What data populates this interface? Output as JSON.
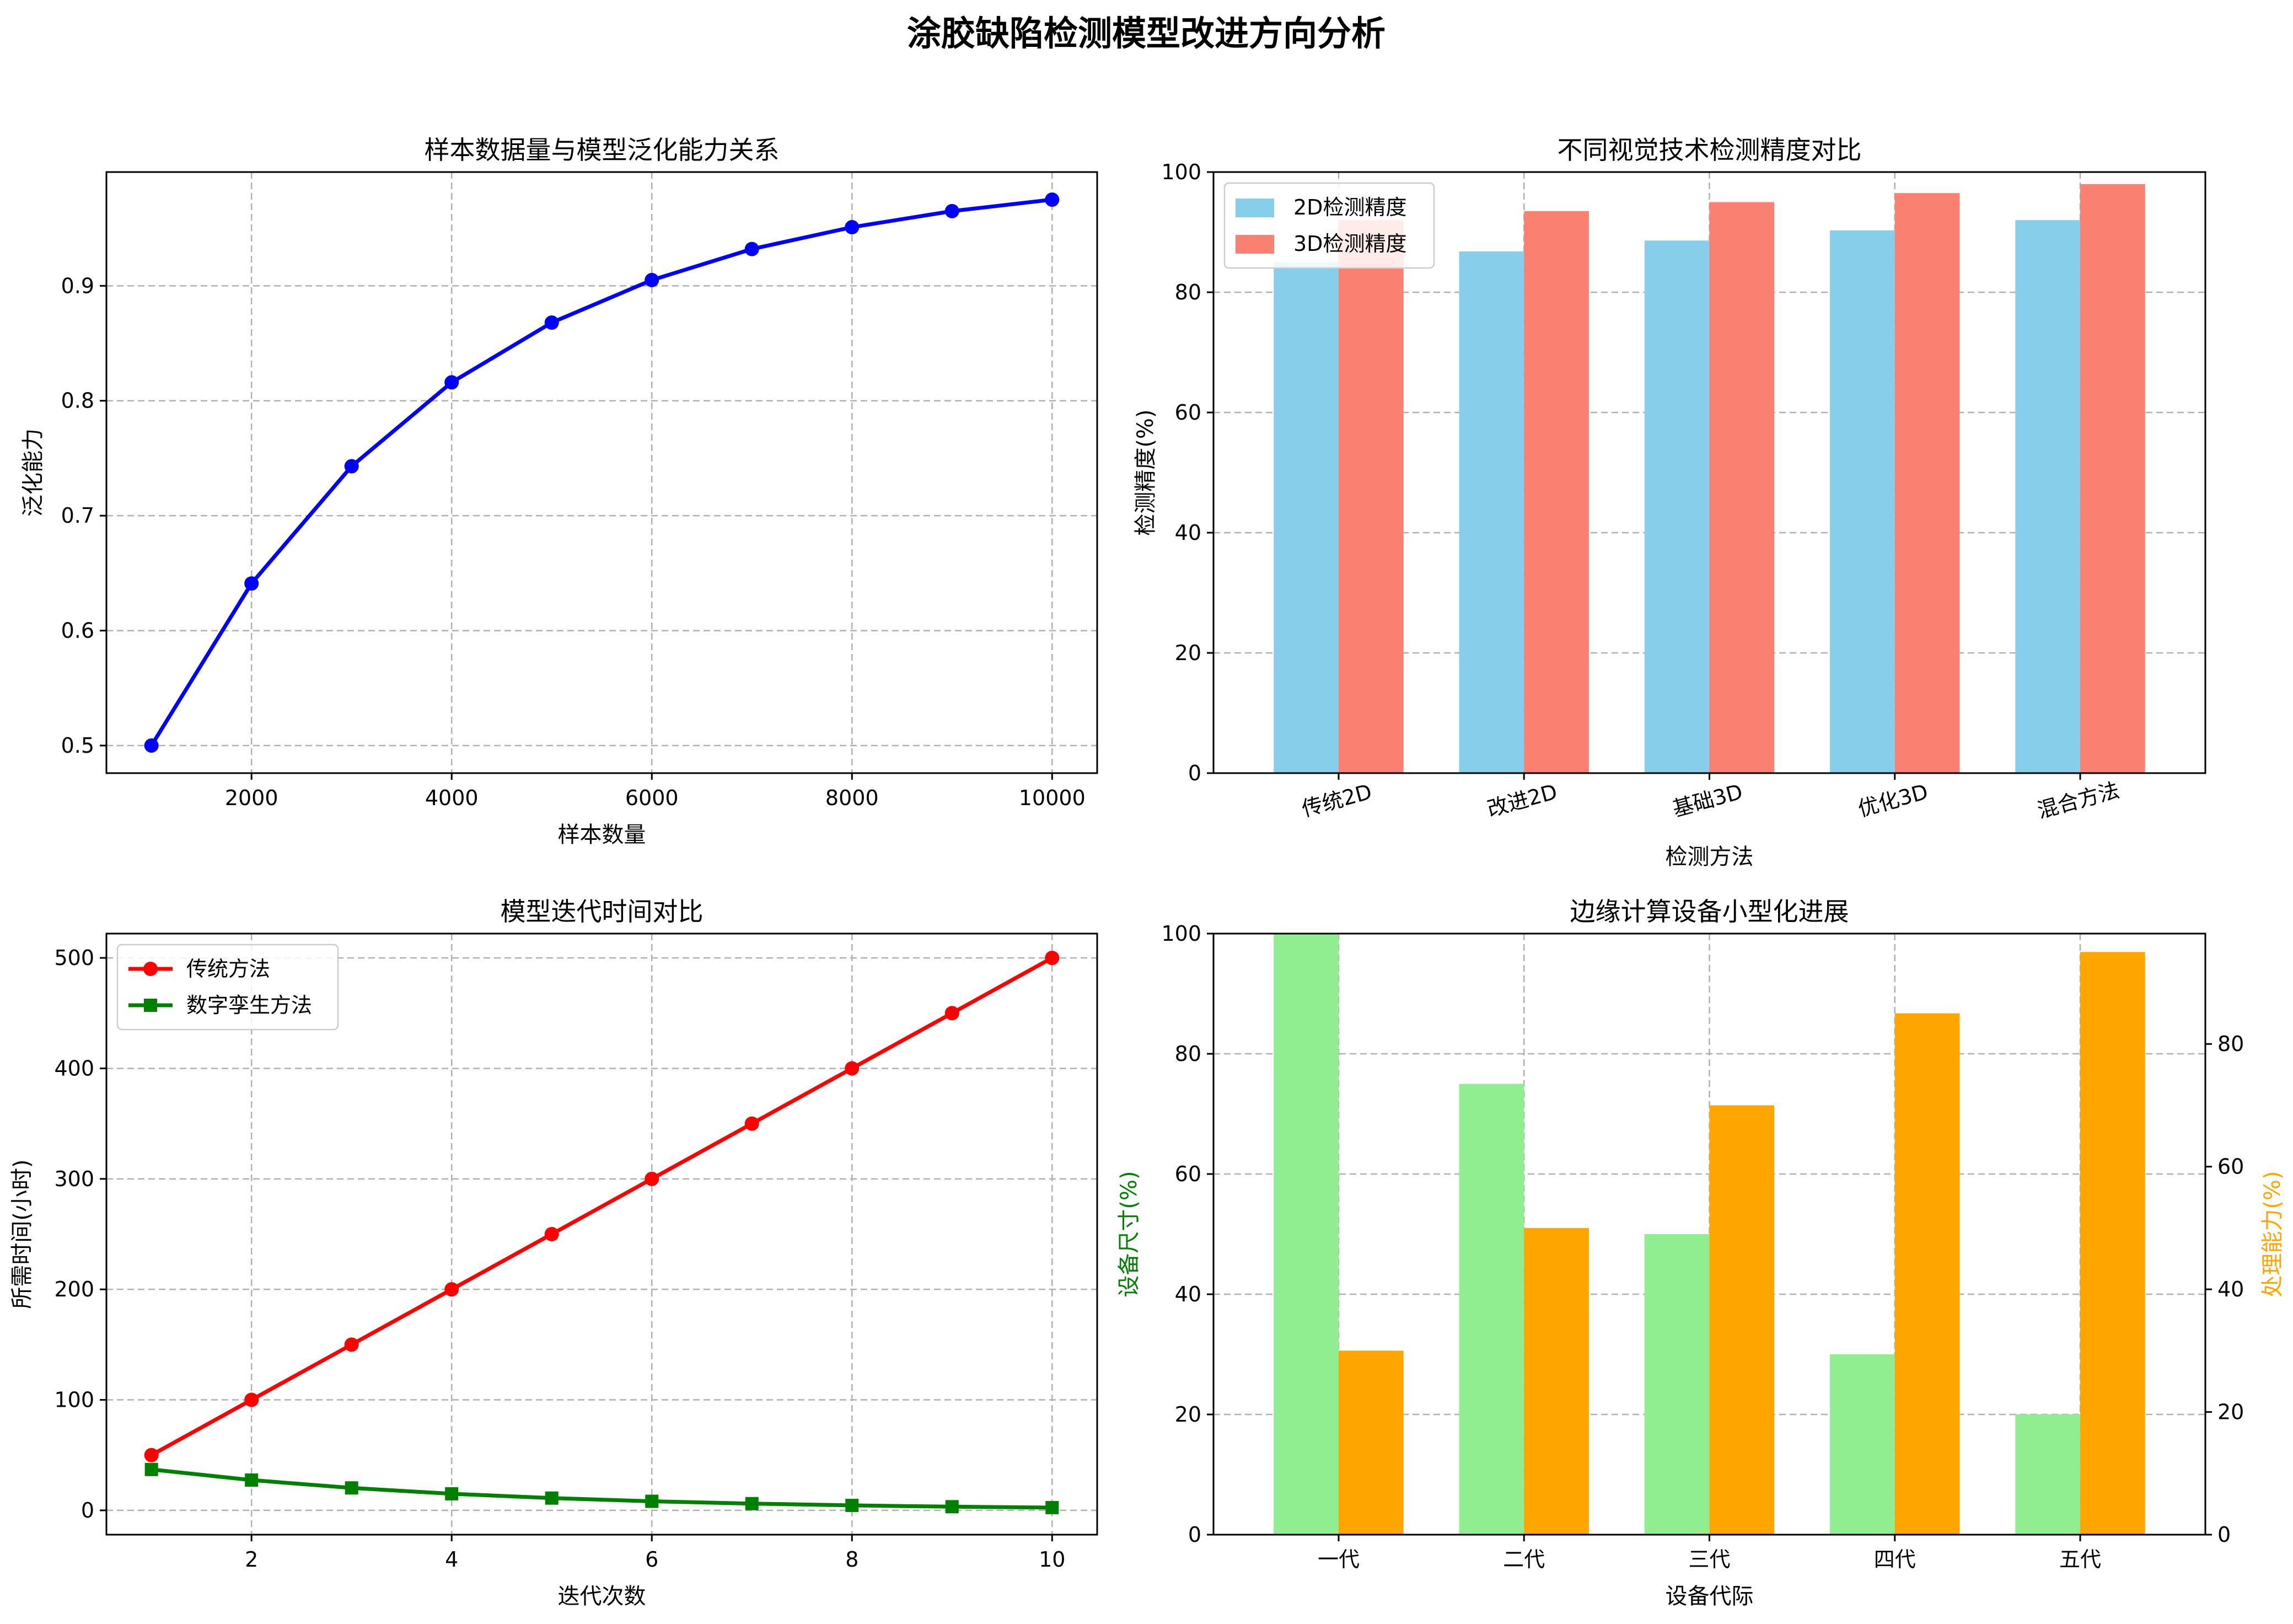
{
  "suptitle": "涂胶缺陷检测模型改进方向分析",
  "chart_data": [
    {
      "type": "line",
      "title": "样本数据量与模型泛化能力关系",
      "xlabel": "样本数量",
      "ylabel": "泛化能力",
      "grid": true,
      "xlim": [
        550,
        10450
      ],
      "ylim": [
        0.476,
        0.999
      ],
      "xticks": [
        2000,
        4000,
        6000,
        8000,
        10000
      ],
      "yticks": [
        0.5,
        0.6,
        0.7,
        0.8,
        0.9
      ],
      "x": [
        1000,
        2000,
        3000,
        4000,
        5000,
        6000,
        7000,
        8000,
        9000,
        10000
      ],
      "series": [
        {
          "color": "#0000ff",
          "marker": "circle",
          "values": [
            0.5,
            0.641,
            0.743,
            0.816,
            0.868,
            0.905,
            0.932,
            0.951,
            0.965,
            0.975
          ]
        }
      ]
    },
    {
      "type": "bar",
      "title": "不同视觉技术检测精度对比",
      "xlabel": "检测方法",
      "ylabel": "检测精度(%)",
      "grid": true,
      "ylim": [
        0,
        100
      ],
      "yticks": [
        0,
        20,
        40,
        60,
        80,
        100
      ],
      "categories": [
        "传统2D",
        "改进2D",
        "基础3D",
        "优化3D",
        "混合方法"
      ],
      "tick_rotation": -15,
      "legend": "top-left",
      "series": [
        {
          "name": "2D检测精度",
          "color": "#87ceeb",
          "values": [
            85,
            86.8,
            88.6,
            90.3,
            92
          ]
        },
        {
          "name": "3D检测精度",
          "color": "#fa8072",
          "values": [
            92,
            93.5,
            95,
            96.5,
            98
          ]
        }
      ]
    },
    {
      "type": "line",
      "title": "模型迭代时间对比",
      "xlabel": "迭代次数",
      "ylabel": "所需时间(小时)",
      "grid": true,
      "legend": "top-left",
      "xlim": [
        0.55,
        10.45
      ],
      "ylim": [
        -22,
        522
      ],
      "xticks": [
        2,
        4,
        6,
        8,
        10
      ],
      "yticks": [
        0,
        100,
        200,
        300,
        400,
        500
      ],
      "x": [
        1,
        2,
        3,
        4,
        5,
        6,
        7,
        8,
        9,
        10
      ],
      "series": [
        {
          "name": "传统方法",
          "color": "#ff0000",
          "marker": "circle",
          "values": [
            50,
            100,
            150,
            200,
            250,
            300,
            350,
            400,
            450,
            500
          ]
        },
        {
          "name": "数字孪生方法",
          "color": "#008000",
          "marker": "square",
          "values": [
            37,
            27.4,
            20.3,
            15,
            11.1,
            8.2,
            6.1,
            4.5,
            3.3,
            2.5
          ]
        }
      ]
    },
    {
      "type": "bar",
      "title": "边缘计算设备小型化进展",
      "xlabel": "设备代际",
      "ylabel": "设备尺寸(%)",
      "ylabel_color": "#008000",
      "ylabel_right": "处理能力(%)",
      "ylabel_right_color": "#ffa500",
      "grid": true,
      "ylim": [
        0,
        100
      ],
      "ylim_right": [
        0,
        98
      ],
      "yticks": [
        0,
        20,
        40,
        60,
        80,
        100
      ],
      "yticks_right": [
        0,
        20,
        40,
        60,
        80
      ],
      "categories": [
        "一代",
        "二代",
        "三代",
        "四代",
        "五代"
      ],
      "series": [
        {
          "name": "设备尺寸",
          "axis": "left",
          "color": "#90ee90",
          "values": [
            100,
            75,
            50,
            30,
            20
          ]
        },
        {
          "name": "处理能力",
          "axis": "right",
          "color": "#ffa500",
          "values": [
            30,
            50,
            70,
            85,
            95
          ]
        }
      ]
    }
  ]
}
